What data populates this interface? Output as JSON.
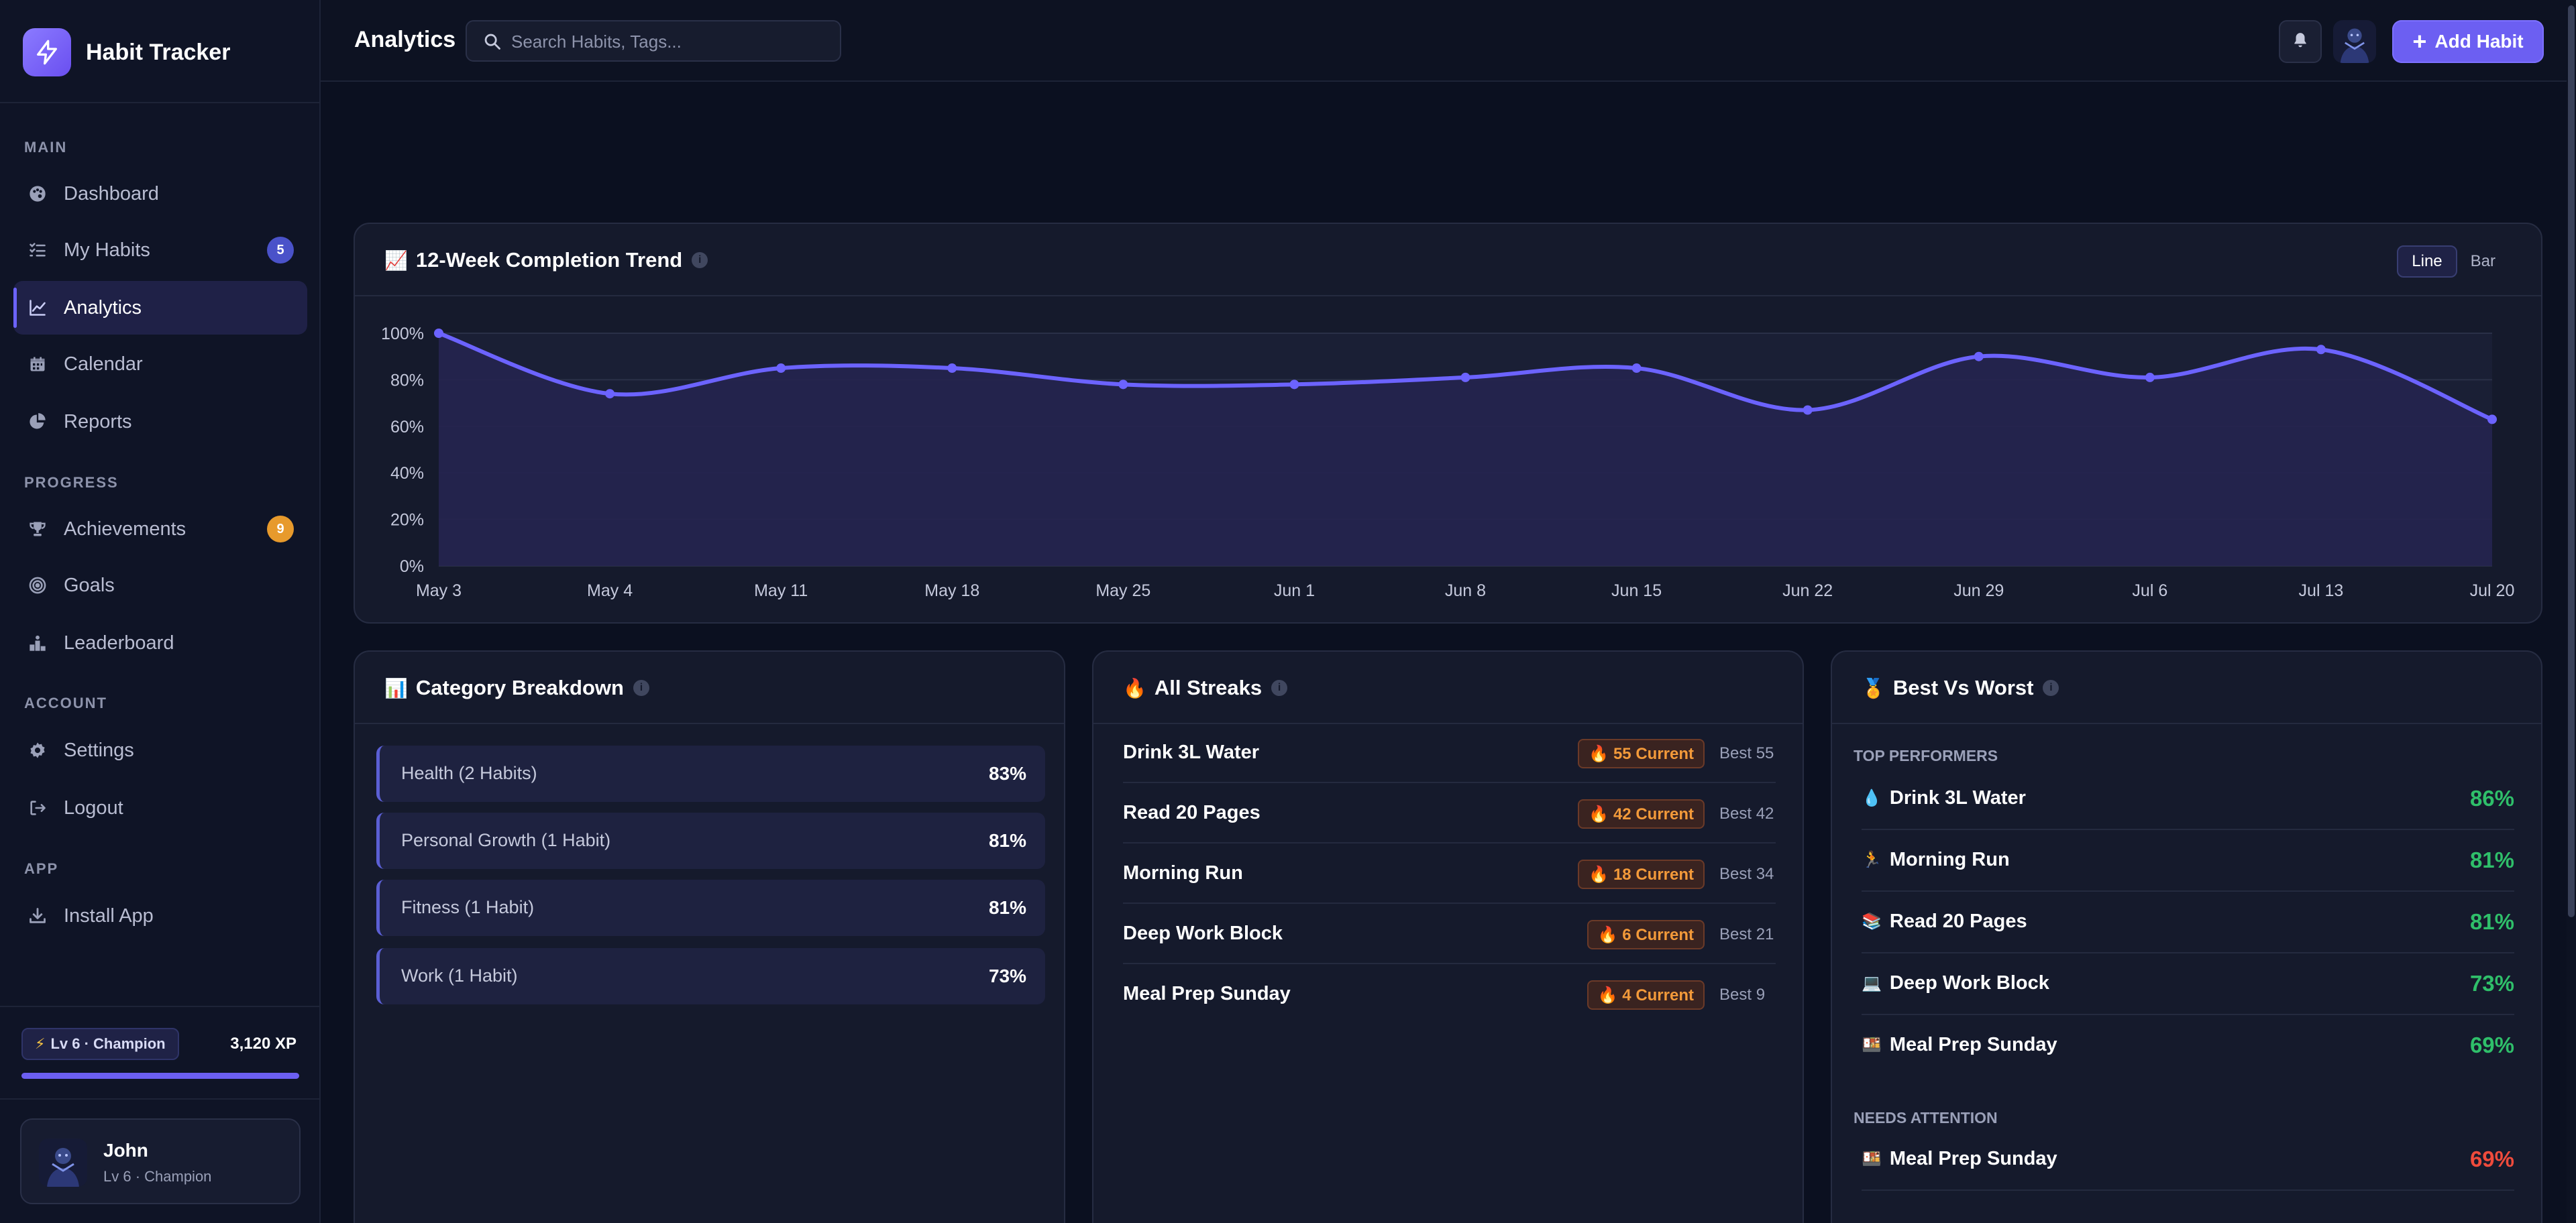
{
  "brand": {
    "name": "Habit Tracker"
  },
  "sidebar": {
    "sections": {
      "main": "MAIN",
      "progress": "PROGRESS",
      "account": "ACCOUNT",
      "app": "APP"
    },
    "items": [
      {
        "label": "Dashboard",
        "icon": "palette-icon"
      },
      {
        "label": "My Habits",
        "icon": "list-check-icon",
        "badge": "5"
      },
      {
        "label": "Analytics",
        "icon": "chart-line-icon",
        "active": true
      },
      {
        "label": "Calendar",
        "icon": "calendar-icon"
      },
      {
        "label": "Reports",
        "icon": "pie-chart-icon"
      },
      {
        "label": "Achievements",
        "icon": "trophy-icon",
        "badge": "9"
      },
      {
        "label": "Goals",
        "icon": "target-icon"
      },
      {
        "label": "Leaderboard",
        "icon": "podium-icon"
      },
      {
        "label": "Settings",
        "icon": "gear-icon"
      },
      {
        "label": "Logout",
        "icon": "logout-icon"
      },
      {
        "label": "Install App",
        "icon": "download-icon"
      }
    ],
    "level_pill": "Lv 6 · Champion",
    "xp": "3,120 XP",
    "xp_progress": 1.0,
    "user": {
      "name": "John",
      "subtitle": "Lv 6 · Champion"
    }
  },
  "header": {
    "title": "Analytics",
    "search_placeholder": "Search Habits, Tags...",
    "add_button": "Add Habit"
  },
  "trend": {
    "title": "12-Week Completion Trend",
    "emoji": "📈",
    "toggle": {
      "line": "Line",
      "bar": "Bar"
    }
  },
  "chart_data": {
    "type": "area",
    "x": [
      "May 3",
      "May 4",
      "May 11",
      "May 18",
      "May 25",
      "Jun 1",
      "Jun 8",
      "Jun 15",
      "Jun 22",
      "Jun 29",
      "Jul 6",
      "Jul 13",
      "Jul 20"
    ],
    "series": [
      {
        "values": [
          100,
          74,
          85,
          85,
          78,
          78,
          81,
          85,
          67,
          90,
          81,
          93,
          63
        ]
      }
    ],
    "y_ticks": [
      "0%",
      "20%",
      "40%",
      "60%",
      "80%",
      "100%"
    ],
    "ylim": [
      0,
      100
    ],
    "grid": true,
    "colors": {
      "line": "#6c63ff",
      "fill": "#25234f"
    }
  },
  "category": {
    "title": "Category Breakdown",
    "emoji": "📊",
    "rows": [
      {
        "label": "Health (2 Habits)",
        "value": "83%"
      },
      {
        "label": "Personal Growth (1 Habit)",
        "value": "81%"
      },
      {
        "label": "Fitness (1 Habit)",
        "value": "81%"
      },
      {
        "label": "Work (1 Habit)",
        "value": "73%"
      }
    ]
  },
  "streaks": {
    "title": "All Streaks",
    "emoji": "🔥",
    "rows": [
      {
        "name": "Drink 3L Water",
        "current": "🔥 55 Current",
        "best": "Best 55"
      },
      {
        "name": "Read 20 Pages",
        "current": "🔥 42 Current",
        "best": "Best 42"
      },
      {
        "name": "Morning Run",
        "current": "🔥 18 Current",
        "best": "Best 34"
      },
      {
        "name": "Deep Work Block",
        "current": "🔥 6 Current",
        "best": "Best 21"
      },
      {
        "name": "Meal Prep Sunday",
        "current": "🔥 4 Current",
        "best": "Best 9"
      }
    ]
  },
  "best_worst": {
    "title": "Best Vs Worst",
    "emoji": "🏅",
    "top_label": "TOP PERFORMERS",
    "attention_label": "NEEDS ATTENTION",
    "top": [
      {
        "emoji": "💧",
        "name": "Drink 3L Water",
        "value": "86%"
      },
      {
        "emoji": "🏃",
        "name": "Morning Run",
        "value": "81%"
      },
      {
        "emoji": "📚",
        "name": "Read 20 Pages",
        "value": "81%"
      },
      {
        "emoji": "💻",
        "name": "Deep Work Block",
        "value": "73%"
      },
      {
        "emoji": "🍱",
        "name": "Meal Prep Sunday",
        "value": "69%"
      }
    ],
    "attention": [
      {
        "emoji": "🍱",
        "name": "Meal Prep Sunday",
        "value": "69%"
      }
    ]
  }
}
